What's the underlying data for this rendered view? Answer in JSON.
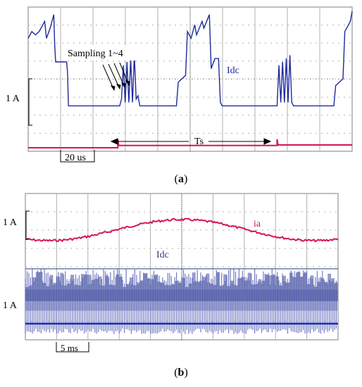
{
  "chart_data": [
    {
      "type": "line",
      "panel_label": "a",
      "title": "",
      "xlabel": "",
      "ylabel": "",
      "scale_label": "1 A",
      "time_scale_label": "20 us",
      "period_label": "Ts",
      "annotation": "Sampling 1~4",
      "grid": true,
      "series": [
        {
          "name": "Idc",
          "color": "#1f2a9c",
          "x_unit": "us",
          "description_points": [
            [
              0,
              2.2
            ],
            [
              2,
              2.4
            ],
            [
              4,
              2.3
            ],
            [
              6,
              2.4
            ],
            [
              9,
              2.7
            ],
            [
              10,
              2.2
            ],
            [
              12,
              2.5
            ],
            [
              14,
              2.9
            ],
            [
              14.5,
              2.0
            ],
            [
              15,
              1.5
            ],
            [
              18,
              1.5
            ],
            [
              21,
              1.5
            ],
            [
              21.5,
              1.2
            ],
            [
              22,
              0.2
            ],
            [
              23,
              0.2
            ],
            [
              50,
              0.2
            ],
            [
              51,
              0.4
            ],
            [
              52,
              1.4
            ],
            [
              53,
              0.3
            ],
            [
              54,
              1.5
            ],
            [
              55,
              0.3
            ],
            [
              56,
              1.6
            ],
            [
              57,
              0.3
            ],
            [
              58,
              1.7
            ],
            [
              59,
              0.4
            ],
            [
              60,
              0.5
            ],
            [
              61,
              0.2
            ],
            [
              81,
              0.2
            ],
            [
              82,
              0.9
            ],
            [
              86,
              1.1
            ],
            [
              87,
              2.4
            ],
            [
              89,
              2.2
            ],
            [
              91,
              2.6
            ],
            [
              92,
              2.3
            ],
            [
              95,
              2.7
            ],
            [
              96,
              2.5
            ],
            [
              99,
              2.9
            ],
            [
              100,
              1.3
            ],
            [
              102,
              1.6
            ],
            [
              104,
              1.6
            ],
            [
              105,
              0.3
            ],
            [
              106,
              0.2
            ],
            [
              136,
              0.2
            ],
            [
              137,
              1.4
            ],
            [
              138,
              0.3
            ],
            [
              139,
              1.5
            ],
            [
              140,
              0.3
            ],
            [
              141,
              1.6
            ],
            [
              142,
              0.3
            ],
            [
              143,
              1.7
            ],
            [
              144,
              0.3
            ],
            [
              145,
              0.2
            ],
            [
              167,
              0.2
            ],
            [
              168,
              0.8
            ],
            [
              172,
              1.0
            ],
            [
              173,
              2.4
            ],
            [
              176,
              2.7
            ],
            [
              177,
              3.0
            ]
          ]
        },
        {
          "name": "",
          "color": "#d4145a",
          "x_unit": "us",
          "description_points": [
            [
              0,
              0
            ],
            [
              49,
              0
            ],
            [
              49,
              0.3
            ],
            [
              49.5,
              0.08
            ],
            [
              50,
              0.08
            ],
            [
              136,
              0.08
            ],
            [
              136,
              0.3
            ],
            [
              136.5,
              0.1
            ],
            [
              177,
              0.1
            ]
          ]
        }
      ]
    },
    {
      "type": "line",
      "panel_label": "b",
      "title": "",
      "xlabel": "",
      "ylabel": "",
      "scale_label_top": "1 A",
      "scale_label_bottom": "1 A",
      "time_scale_label": "5 ms",
      "grid": true,
      "series": [
        {
          "name": "ia",
          "color": "#d4145a",
          "x_unit": "ms",
          "description": "sinusoidal phase current",
          "amplitude_A": 0.65,
          "period_ms": 34,
          "peak_time_ms": 20
        },
        {
          "name": "Idc",
          "color": "#2a3a9c",
          "x_unit": "ms",
          "description": "dense PWM-sampled DC link current band",
          "band_top_A": 1.6,
          "band_bottom_A": -0.3,
          "baseline_A": 0
        }
      ]
    }
  ]
}
